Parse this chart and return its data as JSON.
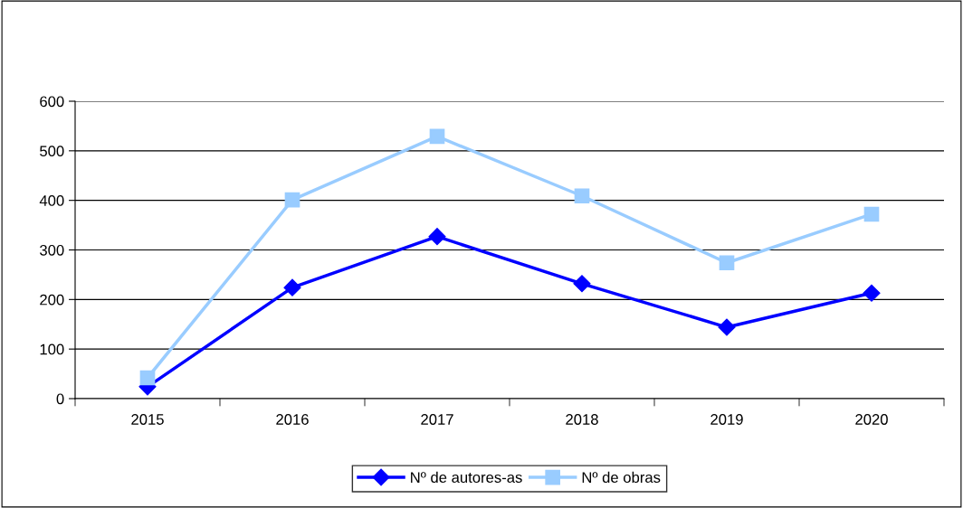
{
  "chart_data": {
    "type": "line",
    "categories": [
      "2015",
      "2016",
      "2017",
      "2018",
      "2019",
      "2020"
    ],
    "series": [
      {
        "name": "Nº de autores-as",
        "color": "#0000ff",
        "marker": "diamond",
        "values": [
          24,
          224,
          327,
          232,
          144,
          213
        ]
      },
      {
        "name": "Nº de obras",
        "color": "#99ccff",
        "marker": "square",
        "values": [
          42,
          401,
          529,
          409,
          274,
          372
        ]
      }
    ],
    "ylim": [
      0,
      600
    ],
    "yticks": [
      0,
      100,
      200,
      300,
      400,
      500,
      600
    ],
    "grid": "y",
    "legend": "bottom",
    "line_style": "solid"
  }
}
